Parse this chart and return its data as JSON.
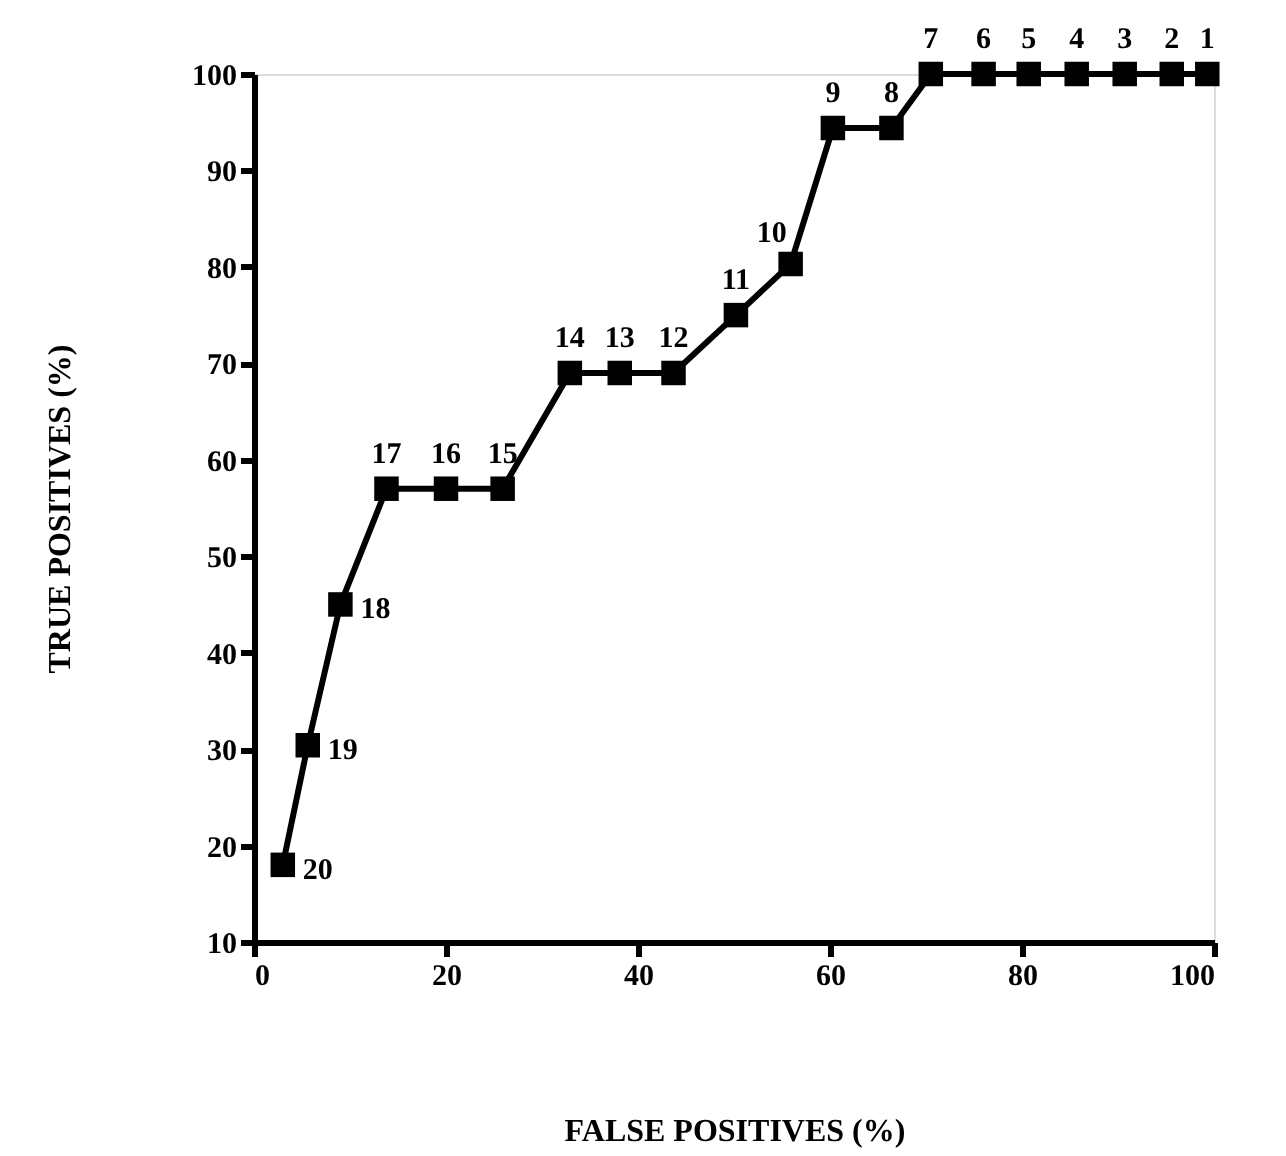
{
  "chart_data": {
    "type": "line",
    "xlabel": "FALSE POSITIVES (%)",
    "ylabel": "TRUE POSITIVES (%)",
    "x": [
      3.0,
      5.6,
      9.0,
      13.8,
      20,
      25.9,
      32.9,
      38.1,
      43.7,
      50.2,
      55.9,
      60.3,
      66.4,
      70.5,
      76,
      80.7,
      85.7,
      90.7,
      95.6,
      99.3
    ],
    "series": [
      {
        "color": "#000000",
        "values": [
          18,
          30.4,
          45,
          57,
          57,
          57,
          69,
          69,
          69,
          75,
          80.3,
          94.4,
          94.4,
          100,
          100,
          100,
          100,
          100,
          100,
          100
        ]
      }
    ],
    "xlim": [
      0,
      100
    ],
    "xticks": [
      0,
      20,
      40,
      60,
      80,
      100
    ],
    "ylim": [
      10,
      100
    ],
    "yticks": [
      10,
      20,
      30,
      40,
      50,
      60,
      70,
      80,
      90,
      100
    ],
    "marker": "square",
    "line_style": "solid",
    "grid": false,
    "annotations": [
      {
        "text": "20",
        "x": 3.0,
        "y": 18
      },
      {
        "text": "19",
        "x": 5.6,
        "y": 30.4
      },
      {
        "text": "18",
        "x": 9.0,
        "y": 45
      },
      {
        "text": "17",
        "x": 13.8,
        "y": 57
      },
      {
        "text": "16",
        "x": 20,
        "y": 57
      },
      {
        "text": "15",
        "x": 25.9,
        "y": 57
      },
      {
        "text": "14",
        "x": 32.9,
        "y": 69
      },
      {
        "text": "13",
        "x": 38.1,
        "y": 69
      },
      {
        "text": "12",
        "x": 43.7,
        "y": 69
      },
      {
        "text": "11",
        "x": 50.2,
        "y": 75
      },
      {
        "text": "10",
        "x": 55.9,
        "y": 80.3
      },
      {
        "text": "9",
        "x": 60.3,
        "y": 94.4
      },
      {
        "text": "8",
        "x": 66.4,
        "y": 94.4
      },
      {
        "text": "7",
        "x": 70.5,
        "y": 100
      },
      {
        "text": "6",
        "x": 76,
        "y": 100
      },
      {
        "text": "5",
        "x": 80.7,
        "y": 100
      },
      {
        "text": "4",
        "x": 85.7,
        "y": 100
      },
      {
        "text": "3",
        "x": 90.7,
        "y": 100
      },
      {
        "text": "2",
        "x": 95.6,
        "y": 100
      },
      {
        "text": "1",
        "x": 99.3,
        "y": 100
      }
    ]
  }
}
